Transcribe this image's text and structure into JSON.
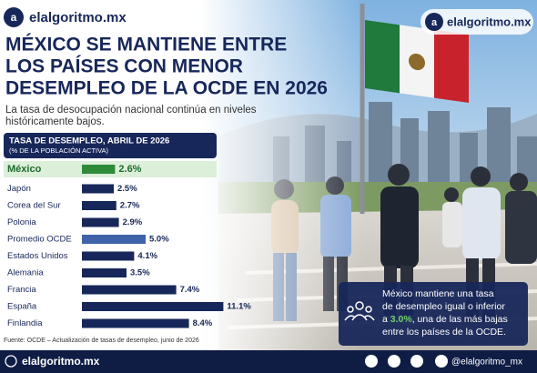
{
  "header": {
    "brand": "elalgoritmo.mx",
    "title_lines": [
      "MÉXICO SE MANTIENE ENTRE",
      "LOS PAÍSES CON MENOR",
      "DESEMPLEO DE LA OCDE EN 2026"
    ],
    "subtitle_lines": [
      "La tasa de desocupación nacional continúa en niveles",
      "históricamente bajos."
    ]
  },
  "chart_data": {
    "type": "bar",
    "orientation": "horizontal",
    "title": "TASA DE DESEMPLEO, ABRIL DE 2026",
    "subtitle": "(% DE LA POBLACIÓN ACTIVA)",
    "categories": [
      "México",
      "Japón",
      "Corea del Sur",
      "Polonia",
      "Promedio OCDE",
      "Estados Unidos",
      "Alemania",
      "Francia",
      "España",
      "Finlandia"
    ],
    "values": [
      2.6,
      2.5,
      2.7,
      2.9,
      5.0,
      4.1,
      3.5,
      7.4,
      11.1,
      8.4
    ],
    "value_labels": [
      "2.6%",
      "2.5%",
      "2.7%",
      "2.9%",
      "5.0%",
      "4.1%",
      "3.5%",
      "7.4%",
      "11.1%",
      "8.4%"
    ],
    "colors": [
      "#2e8b3a",
      "#17275a",
      "#17275a",
      "#17275a",
      "#3f63a8",
      "#17275a",
      "#17275a",
      "#17275a",
      "#17275a",
      "#17275a"
    ],
    "highlight": "México",
    "source": "Fuente: OCDE – Actualización de tasas de desempleo, junio de 2026"
  },
  "callout": {
    "line1": "México mantiene una tasa",
    "line2": "de desempleo igual o inferior",
    "line3": [
      "a ",
      "3.0%",
      ", una de las más bajas"
    ],
    "line4": "entre los países de la OCDE."
  },
  "footer": {
    "brand": "elalgoritmo.mx",
    "handle": "@elalgoritmo_mx"
  }
}
